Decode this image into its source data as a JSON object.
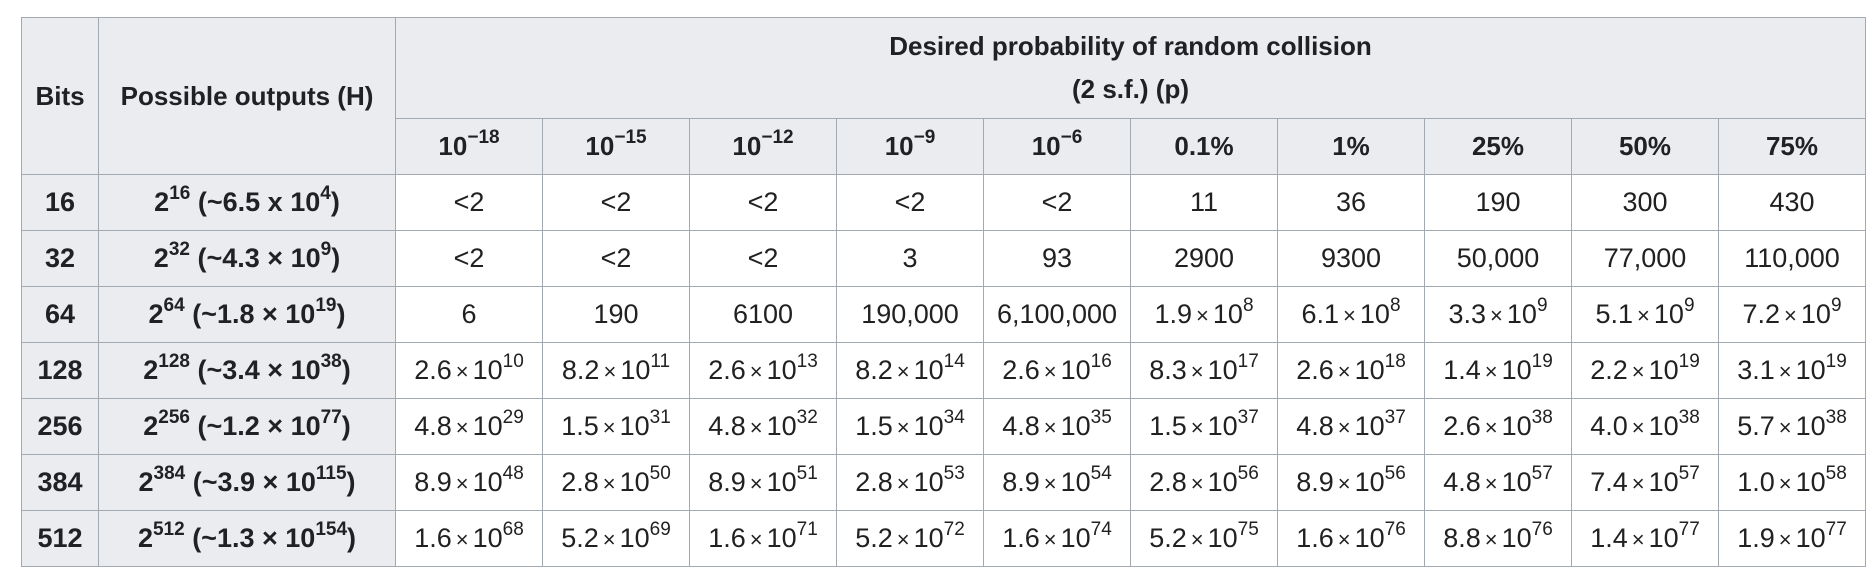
{
  "table": {
    "header_bits": "Bits",
    "header_outputs": "Possible outputs (H)",
    "header_group_line1": "Desired probability of random collision",
    "header_group_line2": "(2 s.f.) (p)",
    "columns": [
      {
        "base": "10",
        "exp": "−18",
        "text": ""
      },
      {
        "base": "10",
        "exp": "−15",
        "text": ""
      },
      {
        "base": "10",
        "exp": "−12",
        "text": ""
      },
      {
        "base": "10",
        "exp": "−9",
        "text": ""
      },
      {
        "base": "10",
        "exp": "−6",
        "text": ""
      },
      {
        "base": "",
        "exp": "",
        "text": "0.1%"
      },
      {
        "base": "",
        "exp": "",
        "text": "1%"
      },
      {
        "base": "",
        "exp": "",
        "text": "25%"
      },
      {
        "base": "",
        "exp": "",
        "text": "50%"
      },
      {
        "base": "",
        "exp": "",
        "text": "75%"
      }
    ],
    "rows": [
      {
        "bits": "16",
        "outputs": {
          "pow": "16",
          "mant": "6.5",
          "exp": "4",
          "sep": " x "
        },
        "cells": [
          {
            "text": "<2"
          },
          {
            "text": "<2"
          },
          {
            "text": "<2"
          },
          {
            "text": "<2"
          },
          {
            "text": "<2"
          },
          {
            "text": "11"
          },
          {
            "text": "36"
          },
          {
            "text": "190"
          },
          {
            "text": "300"
          },
          {
            "text": "430"
          }
        ]
      },
      {
        "bits": "32",
        "outputs": {
          "pow": "32",
          "mant": "4.3",
          "exp": "9",
          "sep": " × "
        },
        "cells": [
          {
            "text": "<2"
          },
          {
            "text": "<2"
          },
          {
            "text": "<2"
          },
          {
            "text": "3"
          },
          {
            "text": "93"
          },
          {
            "text": "2900"
          },
          {
            "text": "9300"
          },
          {
            "text": "50,000"
          },
          {
            "text": "77,000"
          },
          {
            "text": "110,000"
          }
        ]
      },
      {
        "bits": "64",
        "outputs": {
          "pow": "64",
          "mant": "1.8",
          "exp": "19",
          "sep": " × "
        },
        "cells": [
          {
            "text": "6"
          },
          {
            "text": "190"
          },
          {
            "text": "6100"
          },
          {
            "text": "190,000"
          },
          {
            "text": "6,100,000"
          },
          {
            "m": "1.9",
            "e": "8"
          },
          {
            "m": "6.1",
            "e": "8"
          },
          {
            "m": "3.3",
            "e": "9"
          },
          {
            "m": "5.1",
            "e": "9"
          },
          {
            "m": "7.2",
            "e": "9"
          }
        ]
      },
      {
        "bits": "128",
        "outputs": {
          "pow": "128",
          "mant": "3.4",
          "exp": "38",
          "sep": " × "
        },
        "cells": [
          {
            "m": "2.6",
            "e": "10"
          },
          {
            "m": "8.2",
            "e": "11"
          },
          {
            "m": "2.6",
            "e": "13"
          },
          {
            "m": "8.2",
            "e": "14"
          },
          {
            "m": "2.6",
            "e": "16"
          },
          {
            "m": "8.3",
            "e": "17"
          },
          {
            "m": "2.6",
            "e": "18"
          },
          {
            "m": "1.4",
            "e": "19"
          },
          {
            "m": "2.2",
            "e": "19"
          },
          {
            "m": "3.1",
            "e": "19"
          }
        ]
      },
      {
        "bits": "256",
        "outputs": {
          "pow": "256",
          "mant": "1.2",
          "exp": "77",
          "sep": " × "
        },
        "cells": [
          {
            "m": "4.8",
            "e": "29"
          },
          {
            "m": "1.5",
            "e": "31"
          },
          {
            "m": "4.8",
            "e": "32"
          },
          {
            "m": "1.5",
            "e": "34"
          },
          {
            "m": "4.8",
            "e": "35"
          },
          {
            "m": "1.5",
            "e": "37"
          },
          {
            "m": "4.8",
            "e": "37"
          },
          {
            "m": "2.6",
            "e": "38"
          },
          {
            "m": "4.0",
            "e": "38"
          },
          {
            "m": "5.7",
            "e": "38"
          }
        ]
      },
      {
        "bits": "384",
        "outputs": {
          "pow": "384",
          "mant": "3.9",
          "exp": "115",
          "sep": " × "
        },
        "cells": [
          {
            "m": "8.9",
            "e": "48"
          },
          {
            "m": "2.8",
            "e": "50"
          },
          {
            "m": "8.9",
            "e": "51"
          },
          {
            "m": "2.8",
            "e": "53"
          },
          {
            "m": "8.9",
            "e": "54"
          },
          {
            "m": "2.8",
            "e": "56"
          },
          {
            "m": "8.9",
            "e": "56"
          },
          {
            "m": "4.8",
            "e": "57"
          },
          {
            "m": "7.4",
            "e": "57"
          },
          {
            "m": "1.0",
            "e": "58"
          }
        ]
      },
      {
        "bits": "512",
        "outputs": {
          "pow": "512",
          "mant": "1.3",
          "exp": "154",
          "sep": " × "
        },
        "cells": [
          {
            "m": "1.6",
            "e": "68"
          },
          {
            "m": "5.2",
            "e": "69"
          },
          {
            "m": "1.6",
            "e": "71"
          },
          {
            "m": "5.2",
            "e": "72"
          },
          {
            "m": "1.6",
            "e": "74"
          },
          {
            "m": "5.2",
            "e": "75"
          },
          {
            "m": "1.6",
            "e": "76"
          },
          {
            "m": "8.8",
            "e": "76"
          },
          {
            "m": "1.4",
            "e": "77"
          },
          {
            "m": "1.9",
            "e": "77"
          }
        ]
      }
    ]
  }
}
